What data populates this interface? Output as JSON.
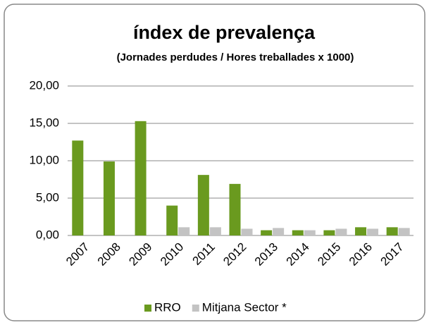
{
  "chart_data": {
    "type": "bar",
    "title": "índex de prevalença",
    "subtitle": "(Jornades perdudes / Hores treballades x 1000)",
    "categories": [
      "2007",
      "2008",
      "2009",
      "2010",
      "2011",
      "2012",
      "2013",
      "2014",
      "2015",
      "2016",
      "2017"
    ],
    "series": [
      {
        "name": "RRO",
        "color": "#6a9a1f",
        "values": [
          12.7,
          9.9,
          15.3,
          4.0,
          8.1,
          6.9,
          0.7,
          0.7,
          0.7,
          1.1,
          1.1
        ]
      },
      {
        "name": "Mitjana Sector *",
        "color": "#c3c3c3",
        "values": [
          null,
          null,
          null,
          1.1,
          1.1,
          0.9,
          1.0,
          0.7,
          0.9,
          0.9,
          1.0
        ]
      }
    ],
    "ylim": [
      0,
      20
    ],
    "yticks": [
      {
        "value": 0,
        "label": "0,00"
      },
      {
        "value": 5,
        "label": "5,00"
      },
      {
        "value": 10,
        "label": "10,00"
      },
      {
        "value": 15,
        "label": "15,00"
      },
      {
        "value": 20,
        "label": "20,00"
      }
    ],
    "grid": true,
    "legend": "bottom"
  }
}
